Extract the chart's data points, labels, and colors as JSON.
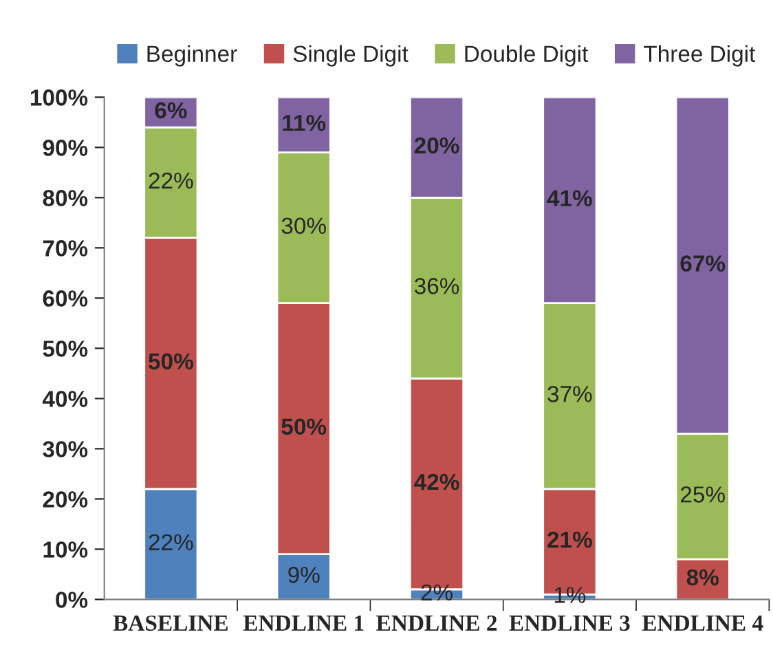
{
  "chart_data": {
    "type": "bar",
    "stacked": true,
    "legend": "top",
    "categories": [
      "BASELINE",
      "ENDLINE 1",
      "ENDLINE 2",
      "ENDLINE 3",
      "ENDLINE 4"
    ],
    "series": [
      {
        "name": "Beginner",
        "color": "#4f81bd",
        "values": [
          22,
          9,
          2,
          1,
          0
        ],
        "value_labels": [
          "22%",
          "9%",
          "2%",
          "1%",
          null
        ]
      },
      {
        "name": "Single Digit",
        "color": "#c0504d",
        "values": [
          50,
          50,
          42,
          21,
          8
        ],
        "value_labels": [
          "50%",
          "50%",
          "42%",
          "21%",
          "8%"
        ]
      },
      {
        "name": "Double Digit",
        "color": "#9bbb59",
        "values": [
          22,
          30,
          36,
          37,
          25
        ],
        "value_labels": [
          "22%",
          "30%",
          "36%",
          "37%",
          "25%"
        ]
      },
      {
        "name": "Three Digit",
        "color": "#8064a2",
        "values": [
          6,
          11,
          20,
          41,
          67
        ],
        "value_labels": [
          "6%",
          "11%",
          "20%",
          "41%",
          "67%"
        ]
      }
    ],
    "ylim": [
      0,
      100
    ],
    "yticks": [
      {
        "value": 0,
        "label": "0%"
      },
      {
        "value": 10,
        "label": "10%"
      },
      {
        "value": 20,
        "label": "20%"
      },
      {
        "value": 30,
        "label": "30%"
      },
      {
        "value": 40,
        "label": "40%"
      },
      {
        "value": 50,
        "label": "50%"
      },
      {
        "value": 60,
        "label": "60%"
      },
      {
        "value": 70,
        "label": "70%"
      },
      {
        "value": 80,
        "label": "80%"
      },
      {
        "value": 90,
        "label": "90%"
      },
      {
        "value": 100,
        "label": "100%"
      }
    ],
    "grid": false
  }
}
